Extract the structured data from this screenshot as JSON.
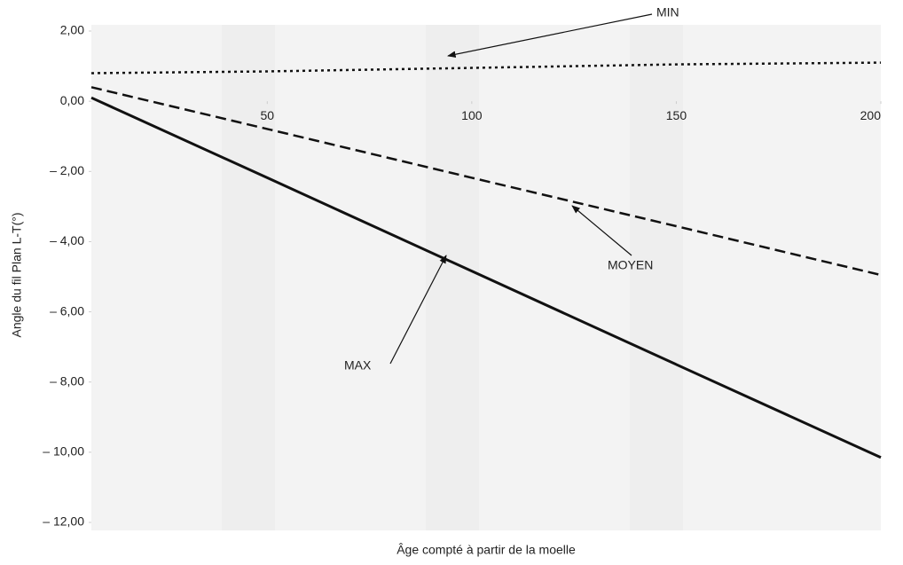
{
  "chart_data": {
    "type": "line",
    "x_label": "Âge compté à partir de la moelle",
    "y_label": "Angle du fil Plan L-T(°)",
    "x": [
      7,
      50,
      100,
      150,
      200
    ],
    "series": [
      {
        "name": "MIN",
        "color": "#111111",
        "linestyle": "dotted",
        "values": [
          0.8,
          0.85,
          0.95,
          1.05,
          1.1
        ]
      },
      {
        "name": "MOYEN",
        "color": "#111111",
        "linestyle": "dashed",
        "values": [
          0.4,
          -0.79,
          -2.18,
          -3.56,
          -4.95
        ]
      },
      {
        "name": "MAX",
        "color": "#111111",
        "linestyle": "solid",
        "values": [
          0.1,
          -2.18,
          -4.84,
          -7.5,
          -10.15
        ]
      }
    ],
    "annotations": [
      "MIN",
      "MOYEN",
      "MAX"
    ],
    "xlim": [
      7,
      200
    ],
    "xticks": [
      50,
      100,
      150,
      200
    ],
    "ylim": [
      -12,
      2
    ],
    "yticks": [
      {
        "value": 2,
        "label": "2,00"
      },
      {
        "value": 0,
        "label": "0,00"
      },
      {
        "value": -2,
        "label": "– 2,00"
      },
      {
        "value": -4,
        "label": "– 4,00"
      },
      {
        "value": -6,
        "label": "– 6,00"
      },
      {
        "value": -8,
        "label": "– 8,00"
      },
      {
        "value": -10,
        "label": "– 10,00"
      },
      {
        "value": -12,
        "label": "– 12,00"
      }
    ]
  }
}
